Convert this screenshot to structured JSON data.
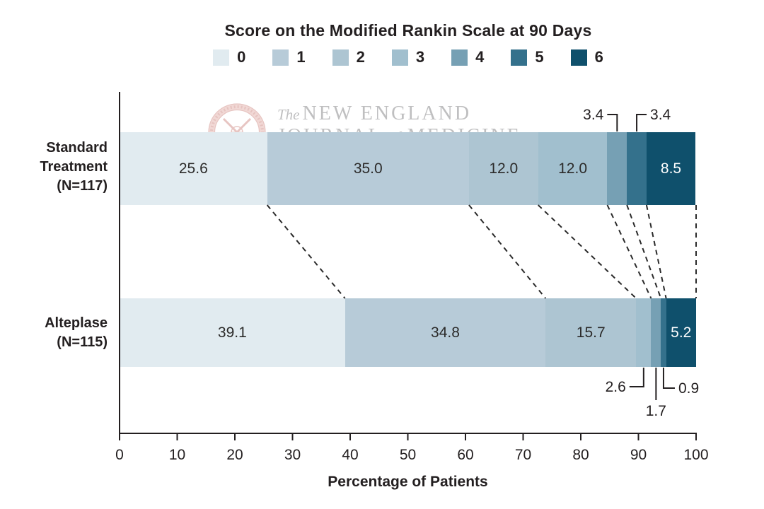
{
  "title": "Score on the Modified Rankin Scale at 90 Days",
  "watermark": {
    "the": "The",
    "line1": "NEW ENGLAND",
    "journal": "JOURNAL",
    "of": "of",
    "medicine": "MEDICINE"
  },
  "chart_data": {
    "type": "bar",
    "variant": "horizontal-stacked",
    "title": "Score on the Modified Rankin Scale at 90 Days",
    "xlabel": "Percentage of Patients",
    "xlim": [
      0,
      100
    ],
    "x_ticks": [
      0,
      10,
      20,
      30,
      40,
      50,
      60,
      70,
      80,
      90,
      100
    ],
    "show_connectors": true,
    "legend": [
      {
        "label": "0",
        "color": "#e1ebf0"
      },
      {
        "label": "1",
        "color": "#b7cbd8"
      },
      {
        "label": "2",
        "color": "#adc5d2"
      },
      {
        "label": "3",
        "color": "#a1bfce"
      },
      {
        "label": "4",
        "color": "#76a0b4"
      },
      {
        "label": "5",
        "color": "#34718c"
      },
      {
        "label": "6",
        "color": "#0f506c"
      }
    ],
    "rows": [
      {
        "group": "Standard Treatment",
        "label_lines": [
          "Standard",
          "Treatment",
          "(N=117)"
        ],
        "values": [
          25.6,
          35.0,
          12.0,
          12.0,
          3.4,
          3.4,
          8.5
        ],
        "value_labels": [
          "25.6",
          "35.0",
          "12.0",
          "12.0",
          "3.4",
          "3.4",
          "8.5"
        ],
        "label_styles": [
          "inside",
          "inside",
          "inside",
          "inside",
          "callout-above-left",
          "callout-above-right",
          "inside-light"
        ]
      },
      {
        "group": "Alteplase",
        "label_lines": [
          "Alteplase",
          "(N=115)"
        ],
        "values": [
          39.1,
          34.8,
          15.7,
          2.6,
          1.7,
          0.9,
          5.2
        ],
        "value_labels": [
          "39.1",
          "34.8",
          "15.7",
          "2.6",
          "1.7",
          "0.9",
          "5.2"
        ],
        "label_styles": [
          "inside",
          "inside",
          "inside",
          "callout-below-left",
          "callout-below-straight",
          "callout-below-right",
          "inside-light"
        ]
      }
    ]
  },
  "colors": {
    "axis": "#231f20",
    "connector": "#2a2a2a",
    "watermark_red": "#cc837c",
    "watermark_gray": "#b4b4b6"
  }
}
